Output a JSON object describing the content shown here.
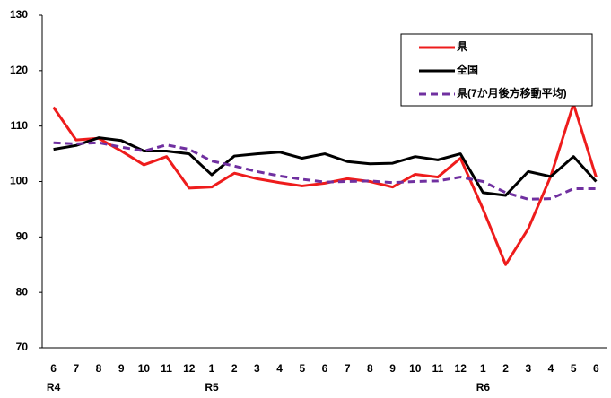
{
  "chart_data": {
    "type": "line",
    "categories": [
      "6",
      "7",
      "8",
      "9",
      "10",
      "11",
      "12",
      "1",
      "2",
      "3",
      "4",
      "5",
      "6",
      "7",
      "8",
      "9",
      "10",
      "11",
      "12",
      "1",
      "2",
      "3",
      "4",
      "5",
      "6"
    ],
    "year_labels": [
      "R4",
      null,
      null,
      null,
      null,
      null,
      null,
      "R5",
      null,
      null,
      null,
      null,
      null,
      null,
      null,
      null,
      null,
      null,
      null,
      "R6",
      null,
      null,
      null,
      null,
      null
    ],
    "series": [
      {
        "name": "県",
        "color": "#ee1c1c",
        "line_style": "solid",
        "values": [
          113.4,
          107.5,
          107.8,
          105.5,
          103.0,
          104.5,
          98.8,
          99.0,
          101.5,
          100.5,
          99.8,
          99.2,
          99.7,
          100.5,
          100.0,
          99.0,
          101.3,
          100.8,
          104.2,
          95.0,
          85.0,
          91.5,
          101.0,
          114.0,
          100.8
        ]
      },
      {
        "name": "全国",
        "color": "#000000",
        "line_style": "solid",
        "values": [
          105.8,
          106.5,
          107.9,
          107.4,
          105.5,
          105.5,
          105.0,
          101.2,
          104.6,
          105.0,
          105.3,
          104.2,
          105.0,
          103.6,
          103.2,
          103.3,
          104.5,
          103.9,
          105.0,
          98.0,
          97.5,
          101.8,
          100.9,
          104.5,
          100.0
        ]
      },
      {
        "name": "県(7か月後方移動平均)",
        "color": "#7030a0",
        "line_style": "dashed",
        "values": [
          107.0,
          106.8,
          107.0,
          106.2,
          105.5,
          106.6,
          105.8,
          103.7,
          102.8,
          101.8,
          101.0,
          100.4,
          99.9,
          100.0,
          100.1,
          99.8,
          100.0,
          100.1,
          100.8,
          100.0,
          98.0,
          96.8,
          96.9,
          98.7,
          98.7
        ]
      }
    ],
    "ylim": [
      70,
      130
    ],
    "yticks": [
      70,
      80,
      90,
      100,
      110,
      120,
      130
    ],
    "grid": false,
    "legend": "top-right"
  }
}
